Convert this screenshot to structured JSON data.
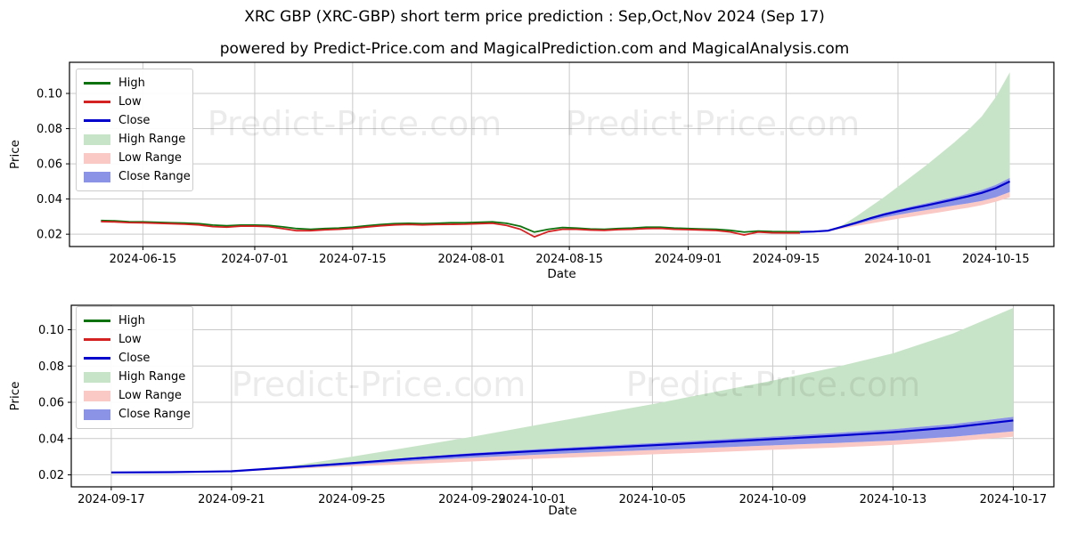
{
  "header": {
    "title": "XRC GBP (XRC-GBP) short term price prediction : Sep,Oct,Nov 2024 (Sep 17)",
    "subtitle": "powered by Predict-Price.com and MagicalPrediction.com and MagicalAnalysis.com"
  },
  "watermark": {
    "text": "Predict-Price.com"
  },
  "legend": {
    "items": [
      {
        "label": "High",
        "swatch": "line",
        "color_key": "high_line"
      },
      {
        "label": "Low",
        "swatch": "line",
        "color_key": "low_line"
      },
      {
        "label": "Close",
        "swatch": "line",
        "color_key": "close_line"
      },
      {
        "label": "High Range",
        "swatch": "patch",
        "color_key": "high_range"
      },
      {
        "label": "Low Range",
        "swatch": "patch",
        "color_key": "low_range"
      },
      {
        "label": "Close Range",
        "swatch": "patch",
        "color_key": "close_range"
      }
    ]
  },
  "colors": {
    "high_line": "#0e720e",
    "low_line": "#d42121",
    "close_line": "#0000cd",
    "high_range": "#c8e4c8",
    "low_range": "#fac9c5",
    "close_range": "#8b93e6",
    "grid": "#c9c9c9",
    "axis": "#000000",
    "watermark_gray": "#000000"
  },
  "chart_data": [
    {
      "type": "line",
      "name": "overview",
      "xlabel": "Date",
      "ylabel": "Price",
      "day_origin": "2024-06-01",
      "xlim_days": [
        3.5,
        144.3
      ],
      "ylim": [
        0.013,
        0.1177
      ],
      "x_ticks": [
        {
          "day": 14,
          "label": "2024-06-15"
        },
        {
          "day": 30,
          "label": "2024-07-01"
        },
        {
          "day": 44,
          "label": "2024-07-15"
        },
        {
          "day": 61,
          "label": "2024-08-01"
        },
        {
          "day": 75,
          "label": "2024-08-15"
        },
        {
          "day": 92,
          "label": "2024-09-01"
        },
        {
          "day": 106,
          "label": "2024-09-15"
        },
        {
          "day": 122,
          "label": "2024-10-01"
        },
        {
          "day": 136,
          "label": "2024-10-15"
        }
      ],
      "y_ticks": [
        {
          "value": 0.02,
          "label": "0.02"
        },
        {
          "value": 0.04,
          "label": "0.04"
        },
        {
          "value": 0.06,
          "label": "0.06"
        },
        {
          "value": 0.08,
          "label": "0.08"
        },
        {
          "value": 0.1,
          "label": "0.10"
        }
      ],
      "series": {
        "history_start_day": 8,
        "history_step_days": 2,
        "high": [
          0.0278,
          0.0276,
          0.0271,
          0.027,
          0.0268,
          0.0265,
          0.0263,
          0.026,
          0.0252,
          0.0248,
          0.0252,
          0.0252,
          0.025,
          0.0242,
          0.0232,
          0.0228,
          0.0232,
          0.0235,
          0.024,
          0.0248,
          0.0255,
          0.026,
          0.0262,
          0.026,
          0.0262,
          0.0265,
          0.0265,
          0.0268,
          0.027,
          0.0262,
          0.0245,
          0.0212,
          0.0228,
          0.0238,
          0.0235,
          0.023,
          0.0228,
          0.0232,
          0.0235,
          0.024,
          0.024,
          0.0235,
          0.0232,
          0.023,
          0.0228,
          0.0222,
          0.0212,
          0.0218,
          0.0215,
          0.0214,
          0.0214
        ],
        "low": [
          0.0272,
          0.027,
          0.0266,
          0.0265,
          0.0262,
          0.026,
          0.0257,
          0.0253,
          0.0243,
          0.024,
          0.0246,
          0.0246,
          0.0243,
          0.0232,
          0.022,
          0.022,
          0.0225,
          0.0228,
          0.0233,
          0.0241,
          0.0248,
          0.0253,
          0.0255,
          0.0253,
          0.0255,
          0.0256,
          0.0257,
          0.026,
          0.0262,
          0.025,
          0.0228,
          0.0185,
          0.0215,
          0.0228,
          0.0228,
          0.0224,
          0.0222,
          0.0226,
          0.0228,
          0.0232,
          0.0233,
          0.0228,
          0.0226,
          0.0224,
          0.0221,
          0.0213,
          0.0196,
          0.0212,
          0.0208,
          0.0207,
          0.0207
        ]
      },
      "prediction": {
        "start_day": 108,
        "step_days": 2,
        "close": [
          0.0213,
          0.0215,
          0.022,
          0.0242,
          0.0265,
          0.029,
          0.0312,
          0.033,
          0.0347,
          0.0363,
          0.038,
          0.0397,
          0.0415,
          0.0435,
          0.0462,
          0.05
        ],
        "high_top": [
          0.0213,
          0.0215,
          0.0222,
          0.025,
          0.03,
          0.0355,
          0.041,
          0.047,
          0.053,
          0.059,
          0.0655,
          0.072,
          0.079,
          0.087,
          0.098,
          0.112
        ],
        "low_bottom": [
          0.0213,
          0.0214,
          0.0216,
          0.0232,
          0.0247,
          0.026,
          0.0274,
          0.0288,
          0.03,
          0.0313,
          0.0325,
          0.0338,
          0.035,
          0.0365,
          0.0385,
          0.041
        ],
        "close_top": [
          0.0213,
          0.0216,
          0.0222,
          0.0246,
          0.027,
          0.0296,
          0.032,
          0.034,
          0.0358,
          0.0375,
          0.0393,
          0.0411,
          0.043,
          0.0452,
          0.048,
          0.052
        ],
        "close_bottom": [
          0.0213,
          0.0214,
          0.0217,
          0.0236,
          0.0255,
          0.0277,
          0.0295,
          0.031,
          0.0324,
          0.0337,
          0.035,
          0.0363,
          0.0375,
          0.0389,
          0.041,
          0.044
        ]
      }
    },
    {
      "type": "line",
      "name": "prediction-zoom",
      "xlabel": "Date",
      "ylabel": "Price",
      "day_origin": "2024-06-01",
      "xlim_days": [
        106.67,
        139.35
      ],
      "ylim": [
        0.0134,
        0.1135
      ],
      "x_ticks": [
        {
          "day": 108,
          "label": "2024-09-17"
        },
        {
          "day": 112,
          "label": "2024-09-21"
        },
        {
          "day": 116,
          "label": "2024-09-25"
        },
        {
          "day": 120,
          "label": "2024-09-29"
        },
        {
          "day": 122,
          "label": "2024-10-01"
        },
        {
          "day": 126,
          "label": "2024-10-05"
        },
        {
          "day": 130,
          "label": "2024-10-09"
        },
        {
          "day": 134,
          "label": "2024-10-13"
        },
        {
          "day": 138,
          "label": "2024-10-17"
        }
      ],
      "y_ticks": [
        {
          "value": 0.02,
          "label": "0.02"
        },
        {
          "value": 0.04,
          "label": "0.04"
        },
        {
          "value": 0.06,
          "label": "0.06"
        },
        {
          "value": 0.08,
          "label": "0.08"
        },
        {
          "value": 0.1,
          "label": "0.10"
        }
      ],
      "prediction": {
        "start_day": 108,
        "step_days": 2,
        "close": [
          0.0213,
          0.0215,
          0.022,
          0.0242,
          0.0265,
          0.029,
          0.0312,
          0.033,
          0.0347,
          0.0363,
          0.038,
          0.0397,
          0.0415,
          0.0435,
          0.0462,
          0.05
        ],
        "high_top": [
          0.0213,
          0.0215,
          0.0222,
          0.025,
          0.03,
          0.0355,
          0.041,
          0.047,
          0.053,
          0.059,
          0.0655,
          0.072,
          0.079,
          0.087,
          0.098,
          0.112
        ],
        "low_bottom": [
          0.0213,
          0.0214,
          0.0216,
          0.0232,
          0.0247,
          0.026,
          0.0274,
          0.0288,
          0.03,
          0.0313,
          0.0325,
          0.0338,
          0.035,
          0.0365,
          0.0385,
          0.041
        ],
        "close_top": [
          0.0213,
          0.0216,
          0.0222,
          0.0246,
          0.027,
          0.0296,
          0.032,
          0.034,
          0.0358,
          0.0375,
          0.0393,
          0.0411,
          0.043,
          0.0452,
          0.048,
          0.052
        ],
        "close_bottom": [
          0.0213,
          0.0214,
          0.0217,
          0.0236,
          0.0255,
          0.0277,
          0.0295,
          0.031,
          0.0324,
          0.0337,
          0.035,
          0.0363,
          0.0375,
          0.0389,
          0.041,
          0.044
        ]
      }
    }
  ]
}
